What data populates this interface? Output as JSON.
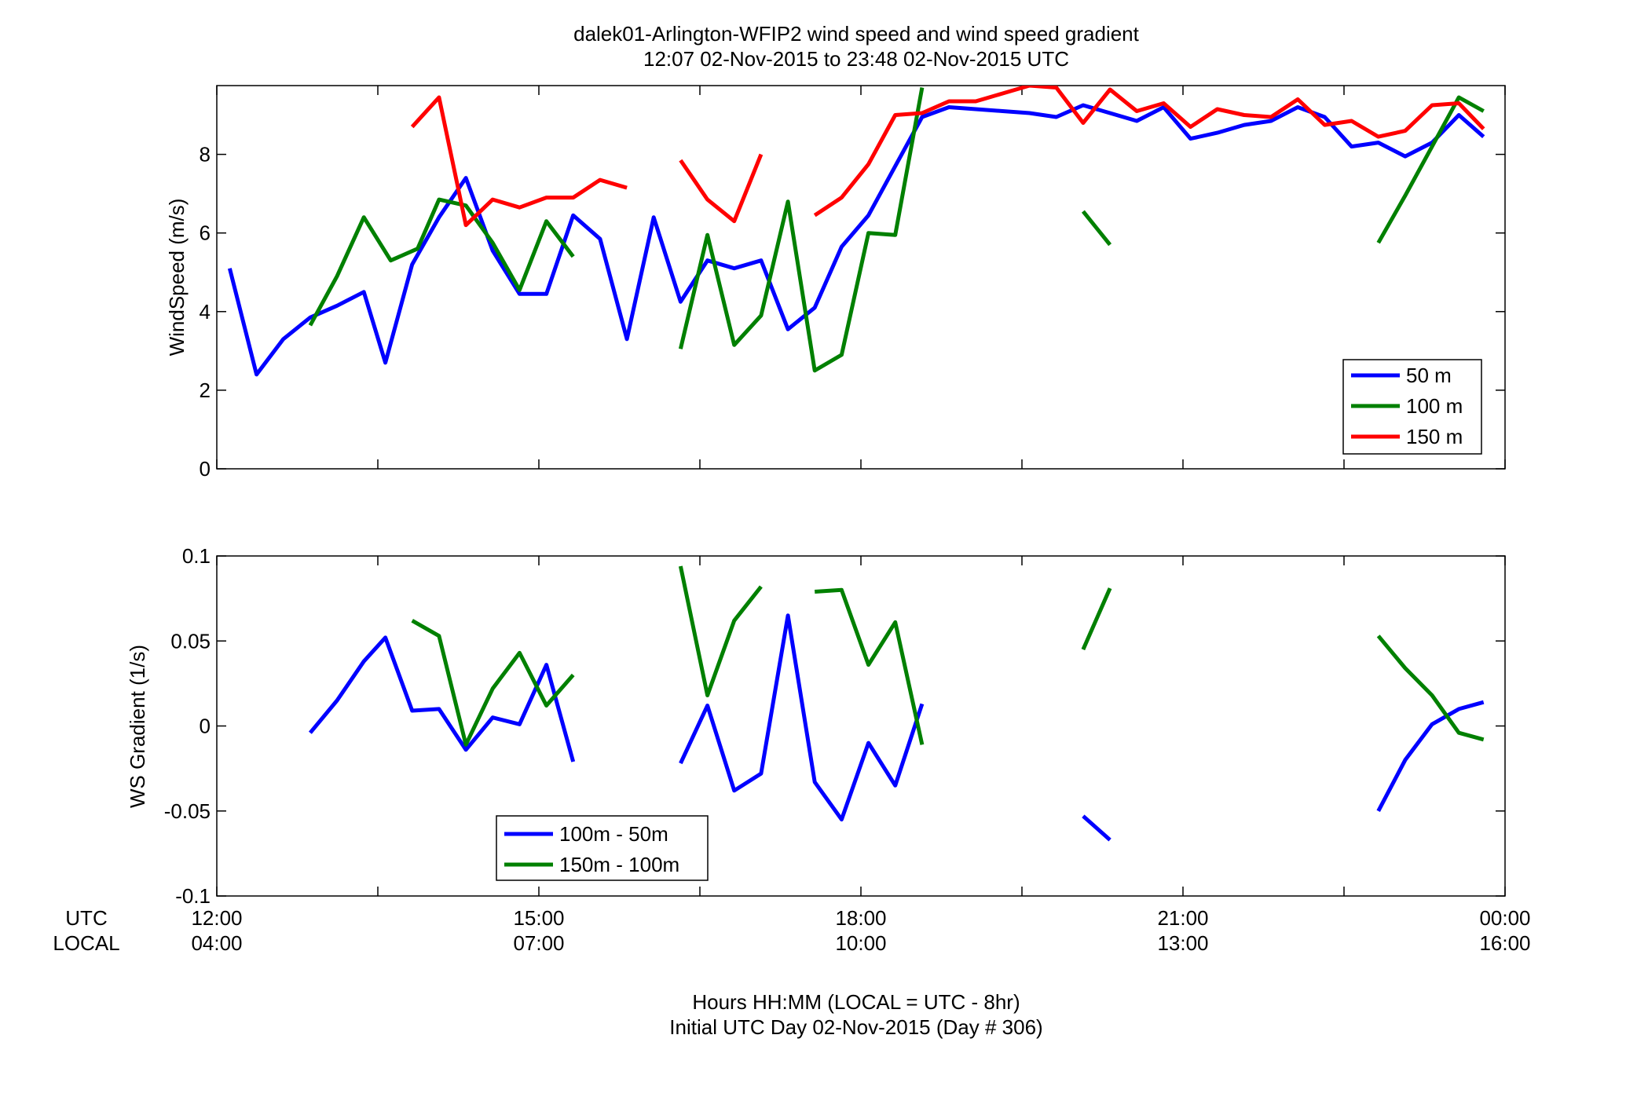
{
  "figure": {
    "title_line1": "dalek01-Arlington-WFIP2  wind speed and wind speed gradient",
    "title_line2": "12:07 02-Nov-2015 to 23:48 02-Nov-2015  UTC",
    "xlabel_line1": "Hours HH:MM  (LOCAL = UTC - 8hr)",
    "xlabel_line2": "Initial UTC Day 02-Nov-2015 (Day # 306)",
    "utc_row_label": "UTC",
    "local_row_label": "LOCAL",
    "utc_ticks": [
      "12:00",
      "15:00",
      "18:00",
      "21:00",
      "00:00"
    ],
    "local_ticks": [
      "04:00",
      "07:00",
      "10:00",
      "13:00",
      "16:00"
    ]
  },
  "chart_data": [
    {
      "type": "line",
      "title": "",
      "xlabel": "",
      "ylabel": "WindSpeed (m/s)",
      "xunit": "hours UTC",
      "xlim": [
        12,
        24
      ],
      "ylim": [
        0,
        9.75
      ],
      "yticks": [
        0,
        2,
        4,
        6,
        8
      ],
      "yticklabels": [
        "0",
        "2",
        "4",
        "6",
        "8"
      ],
      "grid": false,
      "legend": "lower-right",
      "series": [
        {
          "name": "50 m",
          "color": "#0000ff",
          "segments": [
            [
              [
                12.12,
                5.1
              ],
              [
                12.37,
                2.4
              ],
              [
                12.62,
                3.3
              ],
              [
                12.87,
                3.85
              ],
              [
                13.12,
                4.15
              ],
              [
                13.37,
                4.5
              ],
              [
                13.57,
                2.7
              ],
              [
                13.82,
                5.2
              ],
              [
                14.07,
                6.4
              ],
              [
                14.32,
                7.4
              ],
              [
                14.57,
                5.55
              ],
              [
                14.82,
                4.45
              ],
              [
                15.07,
                4.45
              ],
              [
                15.32,
                6.45
              ],
              [
                15.57,
                5.85
              ],
              [
                15.82,
                3.3
              ],
              [
                16.07,
                6.4
              ],
              [
                16.32,
                4.25
              ],
              [
                16.57,
                5.3
              ],
              [
                16.82,
                5.1
              ],
              [
                17.07,
                5.3
              ],
              [
                17.32,
                3.55
              ],
              [
                17.57,
                4.1
              ],
              [
                17.82,
                5.65
              ],
              [
                18.07,
                6.45
              ],
              [
                18.32,
                7.7
              ],
              [
                18.57,
                8.95
              ],
              [
                18.82,
                9.2
              ],
              [
                19.07,
                9.15
              ],
              [
                19.32,
                9.1
              ],
              [
                19.57,
                9.05
              ],
              [
                19.82,
                8.95
              ],
              [
                20.07,
                9.25
              ],
              [
                20.32,
                9.05
              ],
              [
                20.57,
                8.85
              ],
              [
                20.82,
                9.2
              ],
              [
                21.07,
                8.4
              ],
              [
                21.32,
                8.55
              ],
              [
                21.57,
                8.75
              ],
              [
                21.82,
                8.85
              ],
              [
                22.07,
                9.2
              ],
              [
                22.32,
                8.95
              ],
              [
                22.57,
                8.2
              ],
              [
                22.82,
                8.3
              ],
              [
                23.07,
                7.95
              ],
              [
                23.32,
                8.3
              ],
              [
                23.57,
                9.0
              ],
              [
                23.8,
                8.45
              ]
            ]
          ]
        },
        {
          "name": "100 m",
          "color": "#008000",
          "segments": [
            [
              [
                12.87,
                3.65
              ],
              [
                13.12,
                4.9
              ],
              [
                13.37,
                6.4
              ],
              [
                13.62,
                5.3
              ],
              [
                13.87,
                5.6
              ],
              [
                14.07,
                6.85
              ],
              [
                14.32,
                6.7
              ],
              [
                14.57,
                5.75
              ],
              [
                14.82,
                4.55
              ],
              [
                15.07,
                6.3
              ],
              [
                15.32,
                5.4
              ]
            ],
            [
              [
                16.32,
                3.05
              ],
              [
                16.57,
                5.95
              ],
              [
                16.82,
                3.15
              ],
              [
                17.07,
                3.9
              ],
              [
                17.32,
                6.8
              ],
              [
                17.57,
                2.5
              ],
              [
                17.82,
                2.9
              ],
              [
                18.07,
                6.0
              ],
              [
                18.32,
                5.95
              ],
              [
                18.57,
                9.7
              ]
            ],
            [
              [
                20.07,
                6.55
              ],
              [
                20.32,
                5.7
              ]
            ],
            [
              [
                22.82,
                5.75
              ],
              [
                23.07,
                6.95
              ],
              [
                23.32,
                8.2
              ],
              [
                23.57,
                9.45
              ],
              [
                23.8,
                9.1
              ]
            ]
          ]
        },
        {
          "name": "150 m",
          "color": "#ff0000",
          "segments": [
            [
              [
                13.82,
                8.7
              ],
              [
                14.07,
                9.45
              ],
              [
                14.32,
                6.2
              ],
              [
                14.57,
                6.85
              ],
              [
                14.82,
                6.65
              ],
              [
                15.07,
                6.9
              ],
              [
                15.32,
                6.9
              ],
              [
                15.57,
                7.35
              ],
              [
                15.82,
                7.15
              ]
            ],
            [
              [
                16.32,
                7.85
              ],
              [
                16.57,
                6.85
              ],
              [
                16.82,
                6.3
              ],
              [
                17.07,
                8.0
              ]
            ],
            [
              [
                17.57,
                6.45
              ],
              [
                17.82,
                6.9
              ],
              [
                18.07,
                7.75
              ],
              [
                18.32,
                9.0
              ],
              [
                18.57,
                9.05
              ],
              [
                18.82,
                9.35
              ],
              [
                19.07,
                9.35
              ],
              [
                19.32,
                9.55
              ],
              [
                19.57,
                9.75
              ],
              [
                19.82,
                9.7
              ],
              [
                20.07,
                8.8
              ],
              [
                20.32,
                9.65
              ],
              [
                20.57,
                9.1
              ],
              [
                20.82,
                9.3
              ],
              [
                21.07,
                8.7
              ],
              [
                21.32,
                9.15
              ],
              [
                21.57,
                9.0
              ],
              [
                21.82,
                8.95
              ],
              [
                22.07,
                9.4
              ],
              [
                22.32,
                8.75
              ],
              [
                22.57,
                8.85
              ],
              [
                22.82,
                8.45
              ],
              [
                23.07,
                8.6
              ],
              [
                23.32,
                9.25
              ],
              [
                23.57,
                9.3
              ],
              [
                23.8,
                8.65
              ]
            ]
          ]
        }
      ]
    },
    {
      "type": "line",
      "title": "",
      "xlabel": "",
      "ylabel": "WS Gradient (1/s)",
      "xunit": "hours UTC",
      "xlim": [
        12,
        24
      ],
      "ylim": [
        -0.1,
        0.1
      ],
      "yticks": [
        -0.1,
        -0.05,
        0,
        0.05,
        0.1
      ],
      "yticklabels": [
        "-0.1",
        "-0.05",
        "0",
        "0.05",
        "0.1"
      ],
      "grid": false,
      "legend": "lower-left",
      "series": [
        {
          "name": "100m - 50m",
          "color": "#0000ff",
          "segments": [
            [
              [
                12.87,
                -0.004
              ],
              [
                13.12,
                0.015
              ],
              [
                13.37,
                0.038
              ],
              [
                13.57,
                0.052
              ],
              [
                13.82,
                0.009
              ],
              [
                14.07,
                0.01
              ],
              [
                14.32,
                -0.014
              ],
              [
                14.57,
                0.005
              ],
              [
                14.82,
                0.001
              ],
              [
                15.07,
                0.036
              ],
              [
                15.32,
                -0.021
              ]
            ],
            [
              [
                16.32,
                -0.022
              ],
              [
                16.57,
                0.012
              ],
              [
                16.82,
                -0.038
              ],
              [
                17.07,
                -0.028
              ],
              [
                17.32,
                0.065
              ],
              [
                17.57,
                -0.033
              ],
              [
                17.82,
                -0.055
              ],
              [
                18.07,
                -0.01
              ],
              [
                18.32,
                -0.035
              ],
              [
                18.57,
                0.013
              ]
            ],
            [
              [
                20.07,
                -0.053
              ],
              [
                20.32,
                -0.067
              ]
            ],
            [
              [
                22.82,
                -0.05
              ],
              [
                23.07,
                -0.02
              ],
              [
                23.32,
                0.001
              ],
              [
                23.57,
                0.01
              ],
              [
                23.8,
                0.014
              ]
            ]
          ]
        },
        {
          "name": "150m - 100m",
          "color": "#008000",
          "segments": [
            [
              [
                13.82,
                0.062
              ],
              [
                14.07,
                0.053
              ],
              [
                14.32,
                -0.011
              ],
              [
                14.57,
                0.022
              ],
              [
                14.82,
                0.043
              ],
              [
                15.07,
                0.012
              ],
              [
                15.32,
                0.03
              ]
            ],
            [
              [
                16.32,
                0.094
              ],
              [
                16.57,
                0.018
              ],
              [
                16.82,
                0.062
              ],
              [
                17.07,
                0.082
              ]
            ],
            [
              [
                17.57,
                0.079
              ],
              [
                17.82,
                0.08
              ],
              [
                18.07,
                0.036
              ],
              [
                18.32,
                0.061
              ],
              [
                18.57,
                -0.011
              ]
            ],
            [
              [
                20.07,
                0.045
              ],
              [
                20.32,
                0.081
              ]
            ],
            [
              [
                22.82,
                0.053
              ],
              [
                23.07,
                0.034
              ],
              [
                23.32,
                0.018
              ],
              [
                23.57,
                -0.004
              ],
              [
                23.8,
                -0.008
              ]
            ]
          ]
        }
      ]
    }
  ]
}
